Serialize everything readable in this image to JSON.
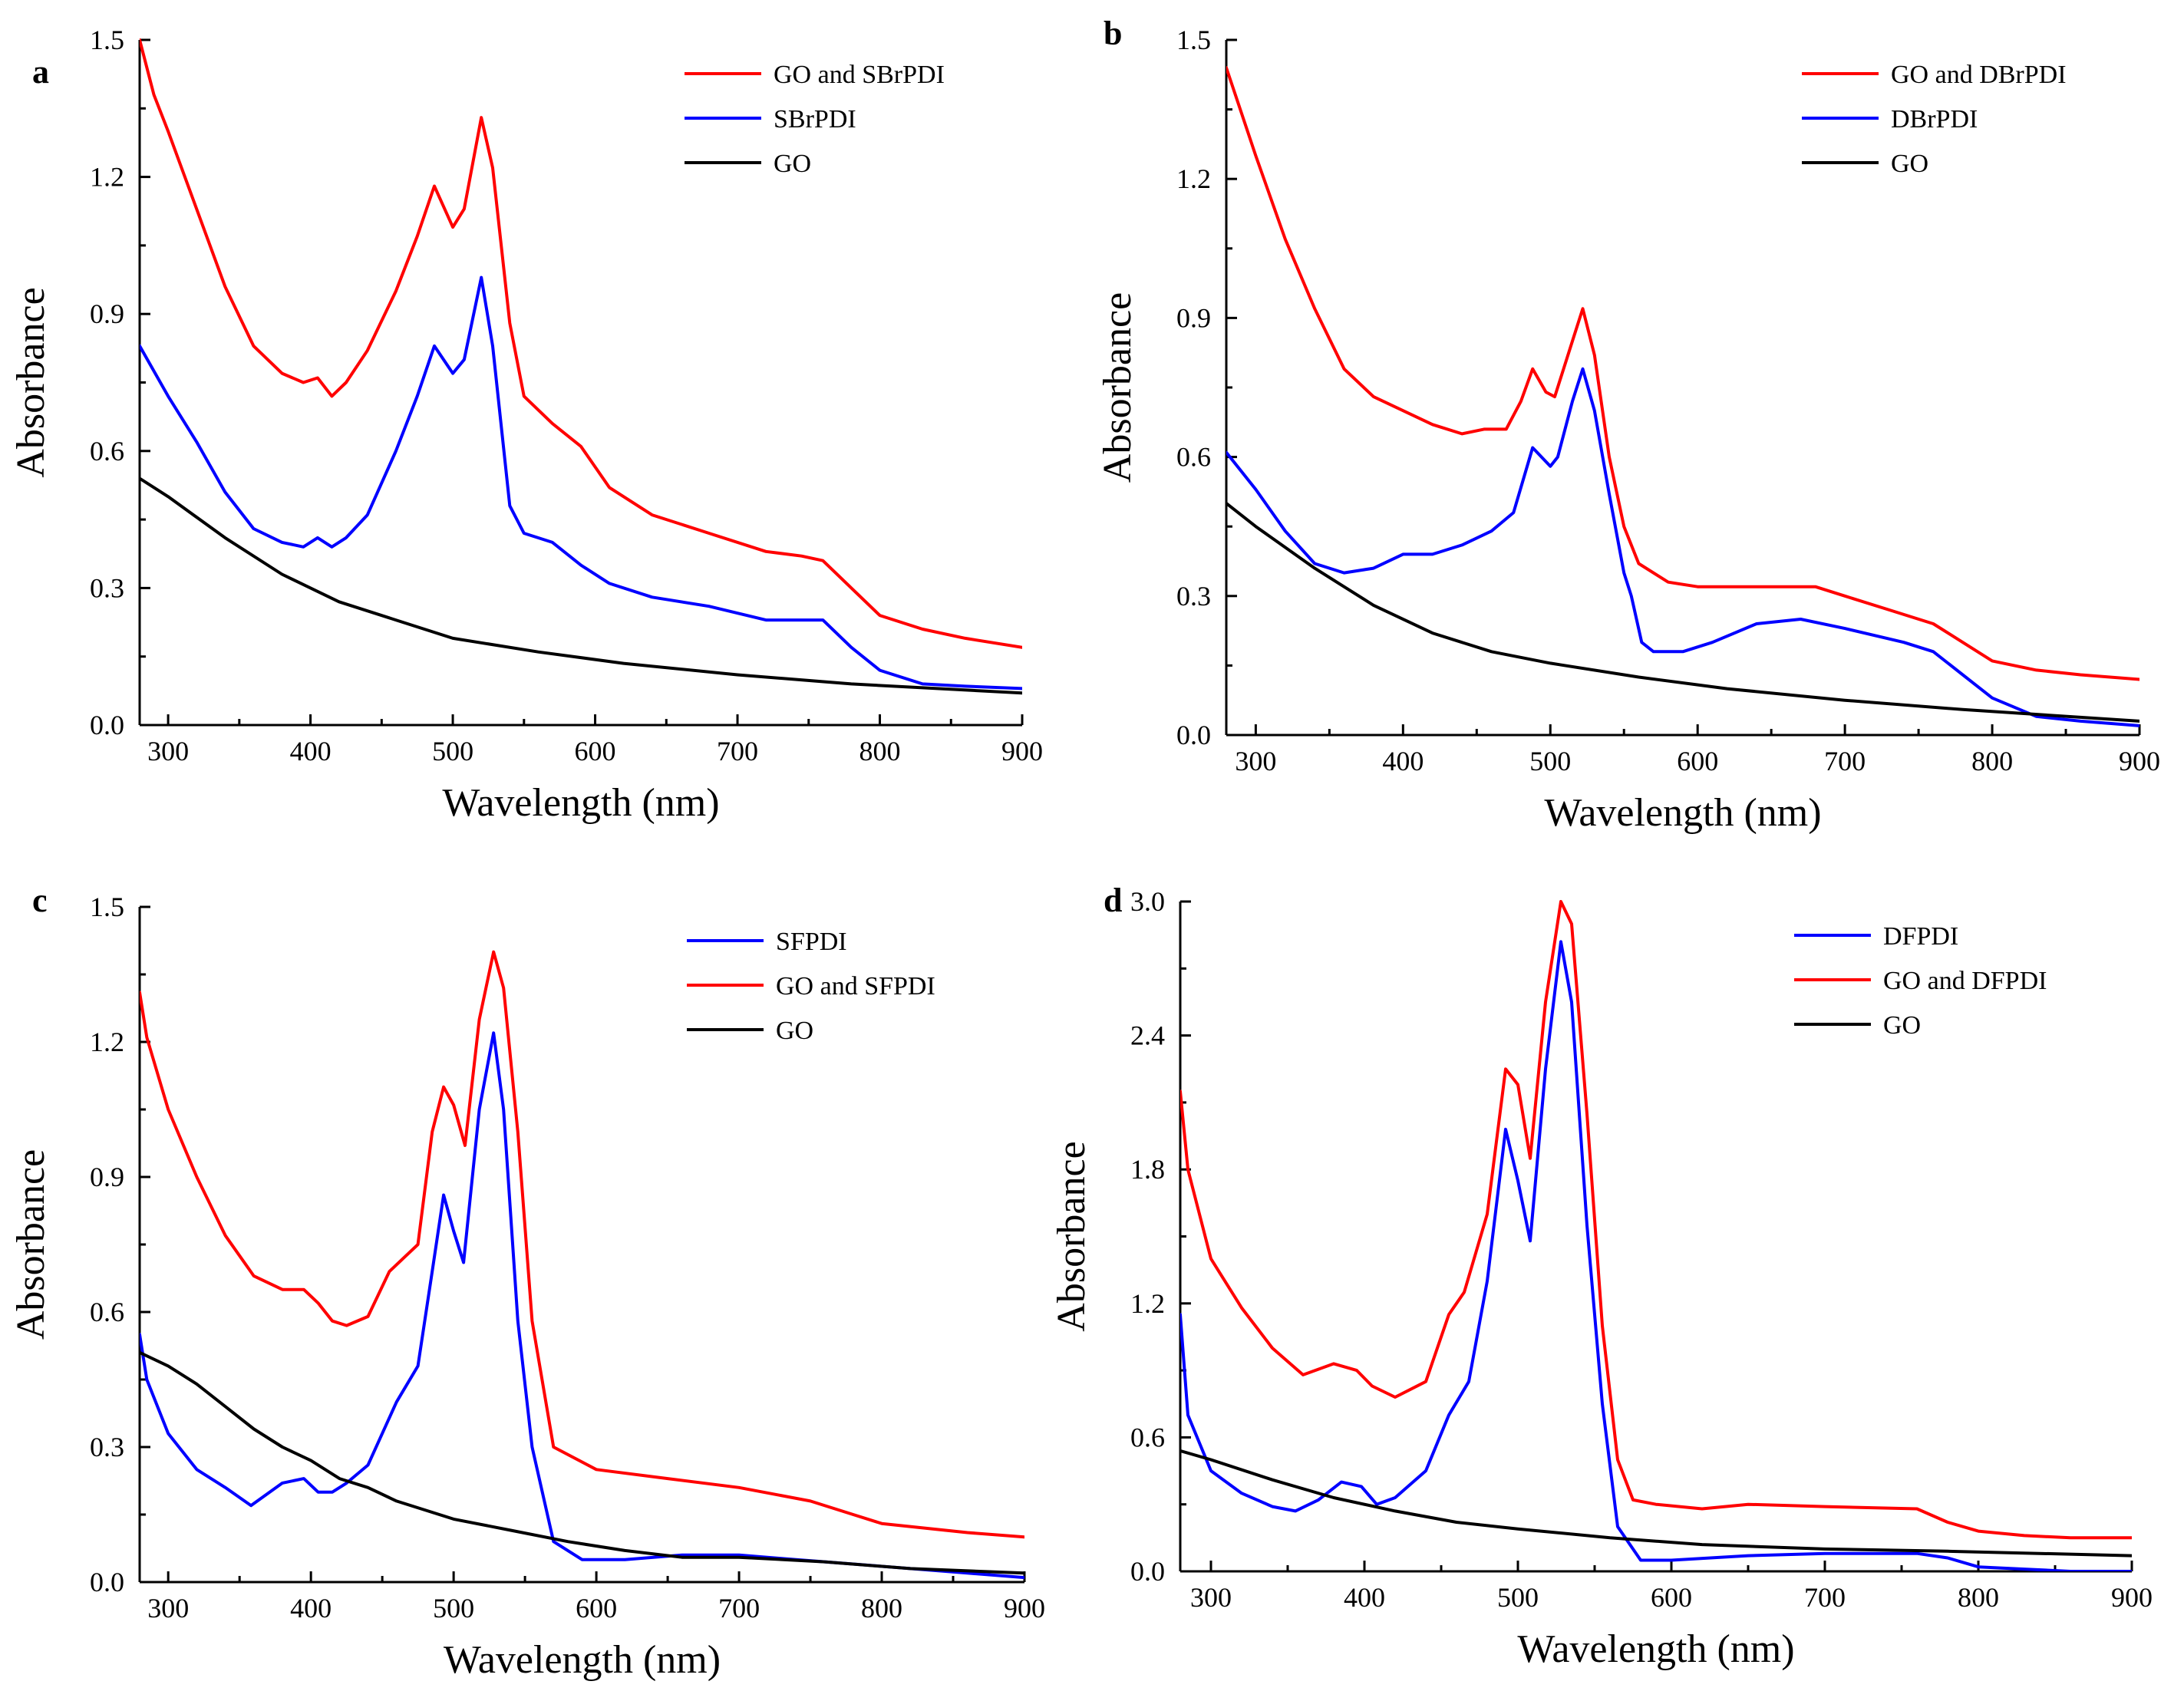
{
  "figure": {
    "colors": {
      "red": "#ff0000",
      "blue": "#0000ff",
      "black": "#000000"
    }
  },
  "chart_data": [
    {
      "panel": "a",
      "type": "line",
      "xlabel": "Wavelength (nm)",
      "ylabel": "Absorbance",
      "xlim": [
        280,
        900
      ],
      "ylim": [
        0.0,
        1.5
      ],
      "xticks": [
        "300",
        "400",
        "500",
        "600",
        "700",
        "800",
        "900"
      ],
      "yticks": [
        "0.0",
        "0.3",
        "0.6",
        "0.9",
        "1.2",
        "1.5"
      ],
      "legend_position": "top-right",
      "series": [
        {
          "name": "GO and SBrPDI",
          "color": "#ff0000",
          "x": [
            280,
            290,
            300,
            320,
            340,
            360,
            380,
            395,
            405,
            415,
            425,
            440,
            460,
            475,
            487,
            500,
            508,
            520,
            528,
            540,
            550,
            570,
            590,
            610,
            640,
            680,
            720,
            745,
            760,
            780,
            800,
            830,
            860,
            900
          ],
          "y": [
            1.5,
            1.38,
            1.3,
            1.13,
            0.96,
            0.83,
            0.77,
            0.75,
            0.76,
            0.72,
            0.75,
            0.82,
            0.95,
            1.07,
            1.18,
            1.09,
            1.13,
            1.33,
            1.22,
            0.88,
            0.72,
            0.66,
            0.61,
            0.52,
            0.46,
            0.42,
            0.38,
            0.37,
            0.36,
            0.3,
            0.24,
            0.21,
            0.19,
            0.17
          ]
        },
        {
          "name": "SBrPDI",
          "color": "#0000ff",
          "x": [
            280,
            300,
            320,
            340,
            360,
            380,
            395,
            405,
            415,
            425,
            440,
            460,
            475,
            487,
            500,
            508,
            520,
            528,
            540,
            550,
            570,
            590,
            610,
            640,
            680,
            720,
            745,
            760,
            780,
            800,
            830,
            860,
            900
          ],
          "y": [
            0.83,
            0.72,
            0.62,
            0.51,
            0.43,
            0.4,
            0.39,
            0.41,
            0.39,
            0.41,
            0.46,
            0.6,
            0.72,
            0.83,
            0.77,
            0.8,
            0.98,
            0.83,
            0.48,
            0.42,
            0.4,
            0.35,
            0.31,
            0.28,
            0.26,
            0.23,
            0.23,
            0.23,
            0.17,
            0.12,
            0.09,
            0.085,
            0.08
          ]
        },
        {
          "name": "GO",
          "color": "#000000",
          "x": [
            280,
            300,
            340,
            380,
            420,
            460,
            500,
            560,
            620,
            700,
            780,
            900
          ],
          "y": [
            0.54,
            0.5,
            0.41,
            0.33,
            0.27,
            0.23,
            0.19,
            0.16,
            0.135,
            0.11,
            0.09,
            0.07
          ]
        }
      ]
    },
    {
      "panel": "b",
      "type": "line",
      "xlabel": "Wavelength (nm)",
      "ylabel": "Absorbance",
      "xlim": [
        280,
        900
      ],
      "ylim": [
        0.0,
        1.5
      ],
      "xticks": [
        "300",
        "400",
        "500",
        "600",
        "700",
        "800",
        "900"
      ],
      "yticks": [
        "0.0",
        "0.3",
        "0.6",
        "0.9",
        "1.2",
        "1.5"
      ],
      "legend_position": "top-right",
      "series": [
        {
          "name": "GO and DBrPDI",
          "color": "#ff0000",
          "x": [
            280,
            300,
            320,
            340,
            360,
            380,
            400,
            420,
            440,
            455,
            470,
            480,
            488,
            497,
            503,
            515,
            522,
            530,
            540,
            550,
            560,
            580,
            600,
            620,
            650,
            680,
            700,
            730,
            760,
            780,
            800,
            830,
            860,
            900
          ],
          "y": [
            1.44,
            1.25,
            1.07,
            0.92,
            0.79,
            0.73,
            0.7,
            0.67,
            0.65,
            0.66,
            0.66,
            0.72,
            0.79,
            0.74,
            0.73,
            0.85,
            0.92,
            0.82,
            0.6,
            0.45,
            0.37,
            0.33,
            0.32,
            0.32,
            0.32,
            0.32,
            0.3,
            0.27,
            0.24,
            0.2,
            0.16,
            0.14,
            0.13,
            0.12
          ]
        },
        {
          "name": "DBrPDI",
          "color": "#0000ff",
          "x": [
            280,
            300,
            320,
            340,
            360,
            380,
            400,
            420,
            440,
            460,
            475,
            488,
            500,
            505,
            515,
            522,
            530,
            540,
            550,
            555,
            562,
            570,
            590,
            610,
            640,
            670,
            700,
            740,
            760,
            780,
            800,
            830,
            860,
            900
          ],
          "y": [
            0.61,
            0.53,
            0.44,
            0.37,
            0.35,
            0.36,
            0.39,
            0.39,
            0.41,
            0.44,
            0.48,
            0.62,
            0.58,
            0.6,
            0.72,
            0.79,
            0.7,
            0.52,
            0.35,
            0.3,
            0.2,
            0.18,
            0.18,
            0.2,
            0.24,
            0.25,
            0.23,
            0.2,
            0.18,
            0.13,
            0.08,
            0.04,
            0.03,
            0.02
          ]
        },
        {
          "name": "GO",
          "color": "#000000",
          "x": [
            280,
            300,
            340,
            380,
            420,
            460,
            500,
            560,
            620,
            700,
            780,
            900
          ],
          "y": [
            0.5,
            0.45,
            0.36,
            0.28,
            0.22,
            0.18,
            0.155,
            0.125,
            0.1,
            0.075,
            0.055,
            0.03
          ]
        }
      ]
    },
    {
      "panel": "c",
      "type": "line",
      "xlabel": "Wavelength (nm)",
      "ylabel": "Absorbance",
      "xlim": [
        280,
        900
      ],
      "ylim": [
        0.0,
        1.5
      ],
      "xticks": [
        "300",
        "400",
        "500",
        "600",
        "700",
        "800",
        "900"
      ],
      "yticks": [
        "0.0",
        "0.3",
        "0.6",
        "0.9",
        "1.2",
        "1.5"
      ],
      "legend_position": "top-right",
      "series": [
        {
          "name": "SFPDI",
          "color": "#0000ff",
          "x": [
            280,
            285,
            300,
            320,
            340,
            358,
            380,
            395,
            405,
            415,
            425,
            440,
            460,
            475,
            485,
            493,
            500,
            507,
            518,
            528,
            535,
            545,
            555,
            570,
            590,
            620,
            660,
            700,
            740,
            780,
            820,
            860,
            900
          ],
          "y": [
            0.55,
            0.45,
            0.33,
            0.25,
            0.21,
            0.17,
            0.22,
            0.23,
            0.2,
            0.2,
            0.22,
            0.26,
            0.4,
            0.48,
            0.69,
            0.86,
            0.78,
            0.71,
            1.05,
            1.22,
            1.05,
            0.58,
            0.3,
            0.09,
            0.05,
            0.05,
            0.06,
            0.06,
            0.05,
            0.04,
            0.03,
            0.02,
            0.01
          ]
        },
        {
          "name": "GO and SFPDI",
          "color": "#ff0000",
          "x": [
            280,
            285,
            300,
            320,
            340,
            360,
            380,
            395,
            405,
            415,
            425,
            440,
            455,
            465,
            475,
            485,
            493,
            500,
            508,
            518,
            528,
            535,
            545,
            555,
            570,
            600,
            650,
            700,
            750,
            780,
            800,
            830,
            860,
            900
          ],
          "y": [
            1.31,
            1.21,
            1.05,
            0.9,
            0.77,
            0.68,
            0.65,
            0.65,
            0.62,
            0.58,
            0.57,
            0.59,
            0.69,
            0.72,
            0.75,
            1.0,
            1.1,
            1.06,
            0.97,
            1.25,
            1.4,
            1.32,
            1.0,
            0.58,
            0.3,
            0.25,
            0.23,
            0.21,
            0.18,
            0.15,
            0.13,
            0.12,
            0.11,
            0.1
          ]
        },
        {
          "name": "GO",
          "color": "#000000",
          "x": [
            280,
            300,
            320,
            340,
            360,
            380,
            400,
            420,
            440,
            460,
            480,
            500,
            540,
            580,
            620,
            660,
            700,
            760,
            820,
            900
          ],
          "y": [
            0.51,
            0.48,
            0.44,
            0.39,
            0.34,
            0.3,
            0.27,
            0.23,
            0.21,
            0.18,
            0.16,
            0.14,
            0.115,
            0.09,
            0.07,
            0.055,
            0.055,
            0.045,
            0.03,
            0.02
          ]
        }
      ]
    },
    {
      "panel": "d",
      "type": "line",
      "xlabel": "Wavelength (nm)",
      "ylabel": "Absorbance",
      "xlim": [
        280,
        900
      ],
      "ylim": [
        0.0,
        3.0
      ],
      "xticks": [
        "300",
        "400",
        "500",
        "600",
        "700",
        "800",
        "900"
      ],
      "yticks": [
        "0.0",
        "0.6",
        "1.2",
        "1.8",
        "2.4",
        "3.0"
      ],
      "legend_position": "top-right",
      "series": [
        {
          "name": "DFPDI",
          "color": "#0000ff",
          "x": [
            280,
            285,
            300,
            320,
            340,
            355,
            370,
            385,
            398,
            408,
            420,
            440,
            455,
            468,
            480,
            492,
            500,
            508,
            518,
            528,
            535,
            545,
            555,
            565,
            580,
            600,
            650,
            700,
            760,
            780,
            800,
            830,
            860,
            900
          ],
          "y": [
            1.15,
            0.7,
            0.45,
            0.35,
            0.29,
            0.27,
            0.32,
            0.4,
            0.38,
            0.3,
            0.33,
            0.45,
            0.7,
            0.85,
            1.3,
            1.98,
            1.75,
            1.48,
            2.25,
            2.82,
            2.55,
            1.55,
            0.75,
            0.2,
            0.05,
            0.05,
            0.07,
            0.08,
            0.08,
            0.06,
            0.02,
            0.01,
            0.0,
            0.0
          ]
        },
        {
          "name": "GO and DFPDI",
          "color": "#ff0000",
          "x": [
            280,
            285,
            300,
            320,
            340,
            360,
            380,
            395,
            405,
            420,
            440,
            455,
            465,
            480,
            492,
            500,
            508,
            518,
            528,
            535,
            545,
            555,
            565,
            575,
            590,
            620,
            650,
            700,
            760,
            780,
            800,
            830,
            860,
            900
          ],
          "y": [
            2.15,
            1.8,
            1.4,
            1.18,
            1.0,
            0.88,
            0.93,
            0.9,
            0.83,
            0.78,
            0.85,
            1.15,
            1.25,
            1.6,
            2.25,
            2.18,
            1.85,
            2.55,
            3.0,
            2.9,
            2.05,
            1.1,
            0.5,
            0.32,
            0.3,
            0.28,
            0.3,
            0.29,
            0.28,
            0.22,
            0.18,
            0.16,
            0.15,
            0.15
          ]
        },
        {
          "name": "GO",
          "color": "#000000",
          "x": [
            280,
            300,
            340,
            380,
            420,
            460,
            500,
            560,
            620,
            700,
            780,
            900
          ],
          "y": [
            0.54,
            0.5,
            0.41,
            0.33,
            0.27,
            0.22,
            0.19,
            0.15,
            0.12,
            0.1,
            0.09,
            0.07
          ]
        }
      ]
    }
  ]
}
